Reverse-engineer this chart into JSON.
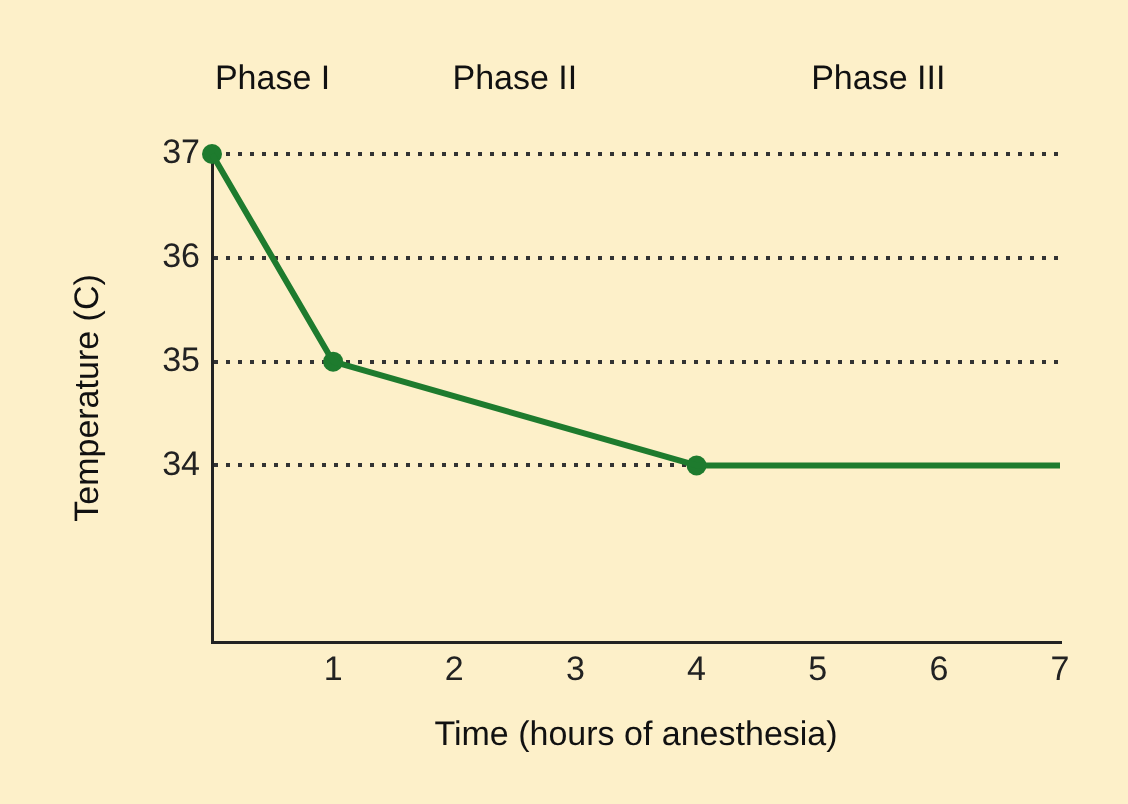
{
  "chart_data": {
    "type": "line",
    "xlabel": "Time (hours of anesthesia)",
    "ylabel": "Temperature (C)",
    "annotations": [
      "Phase I",
      "Phase II",
      "Phase III"
    ],
    "series": [
      {
        "type": "line",
        "color": "#1e7b2e",
        "x": [
          0,
          1,
          4,
          7
        ],
        "values": [
          37,
          35,
          34,
          34
        ],
        "marker": "none"
      },
      {
        "type": "scatter",
        "color": "#1e7b2e",
        "x": [
          0,
          1,
          4
        ],
        "values": [
          37,
          35,
          34
        ],
        "marker": "circle"
      }
    ],
    "xlim": [
      0,
      7
    ],
    "xticks": [
      1,
      2,
      3,
      4,
      5,
      6,
      7
    ],
    "ylim": [
      32.3,
      37
    ],
    "yticks": [
      34,
      35,
      36,
      37
    ],
    "grid": "y",
    "legend": false
  }
}
